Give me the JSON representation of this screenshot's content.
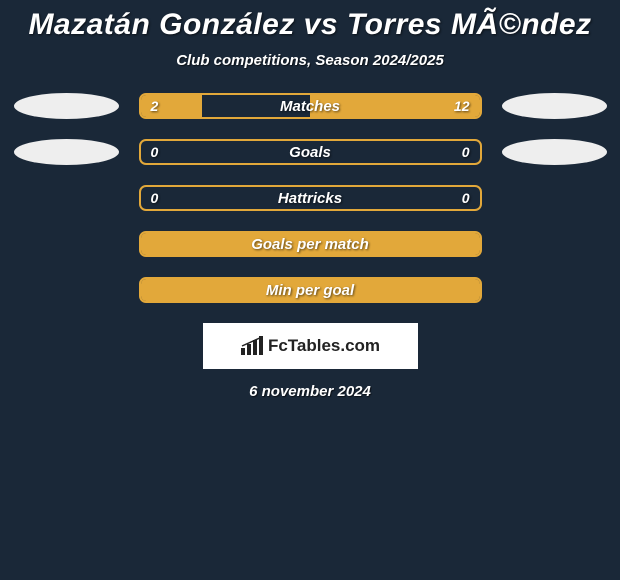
{
  "title": "Mazatán González vs Torres MÃ©ndez",
  "subtitle": "Club competitions, Season 2024/2025",
  "logo_text": "FcTables.com",
  "date": "6 november 2024",
  "colors": {
    "background": "#1a2838",
    "accent": "#e2a83a",
    "ellipse": "#eeeeee",
    "logo_bg": "#ffffff",
    "logo_text": "#222222"
  },
  "bars": [
    {
      "label": "Matches",
      "left_value": "2",
      "right_value": "12",
      "left_fill_pct": 18,
      "right_fill_pct": 50,
      "show_ellipses": true
    },
    {
      "label": "Goals",
      "left_value": "0",
      "right_value": "0",
      "left_fill_pct": 0,
      "right_fill_pct": 0,
      "show_ellipses": true
    },
    {
      "label": "Hattricks",
      "left_value": "0",
      "right_value": "0",
      "left_fill_pct": 0,
      "right_fill_pct": 0,
      "show_ellipses": false
    },
    {
      "label": "Goals per match",
      "left_value": "",
      "right_value": "",
      "left_fill_pct": 0,
      "right_fill_pct": 0,
      "show_ellipses": false,
      "full_fill": true
    },
    {
      "label": "Min per goal",
      "left_value": "",
      "right_value": "",
      "left_fill_pct": 0,
      "right_fill_pct": 0,
      "show_ellipses": false,
      "full_fill": true
    }
  ]
}
